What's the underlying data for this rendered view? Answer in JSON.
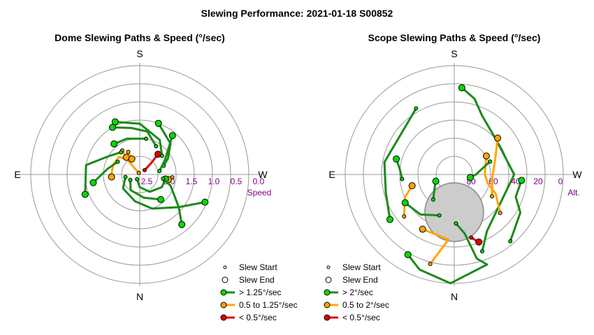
{
  "title": "Slewing Performance: 2021-01-18 S00852",
  "colors": {
    "fast": "#1a8a1a",
    "fast_marker": "#00dd00",
    "mid": "#ffa500",
    "slow": "#e00000",
    "grid": "#999999",
    "label": "#800080",
    "exclusion": "#cccccc"
  },
  "chart_data": [
    {
      "type": "polar-path",
      "title": "Dome Slewing Paths & Speed (°/sec)",
      "compass": {
        "top": "S",
        "bottom": "N",
        "left": "E",
        "right": "W"
      },
      "radial_ticks": [
        "2.5",
        "2.0",
        "1.5",
        "1.0",
        "0.5",
        "0.0"
      ],
      "radial_axis_label": "Speed",
      "legend": [
        "Slew Start",
        "Slew End",
        "> 1.25°/sec",
        "0.5 to 1.25°/sec",
        "< 0.5°/sec"
      ],
      "slews": [
        {
          "cls": "slow",
          "pts": [
            [
              48,
              0.18
            ],
            [
              45,
              0.45
            ],
            [
              42,
              0.75
            ]
          ]
        },
        {
          "cls": "mid",
          "pts": [
            [
              -32,
              0.05
            ],
            [
              -40,
              0.55
            ],
            [
              -50,
              0.75
            ],
            [
              -70,
              0.78
            ],
            [
              -90,
              0.78
            ],
            [
              -95,
              0.78
            ]
          ]
        },
        {
          "cls": "mid",
          "pts": [
            [
              -36,
              0.82
            ],
            [
              -38,
              0.6
            ]
          ]
        },
        {
          "cls": "mid",
          "pts": [
            [
              -27,
              0.7
            ],
            [
              -27,
              0.48
            ]
          ]
        },
        {
          "cls": "mid",
          "pts": [
            [
              95,
              0.9
            ],
            [
              100,
              0.8
            ]
          ]
        },
        {
          "cls": "fast",
          "pts": [
            [
              -150,
              0.15
            ],
            [
              -180,
              0.35
            ],
            [
              150,
              0.55
            ],
            [
              120,
              0.7
            ],
            [
              100,
              0.72
            ]
          ]
        },
        {
          "cls": "fast",
          "pts": [
            [
              -120,
              0.3
            ],
            [
              -150,
              0.5
            ],
            [
              170,
              0.65
            ],
            [
              140,
              0.9
            ]
          ]
        },
        {
          "cls": "fast",
          "pts": [
            [
              -100,
              0.4
            ],
            [
              -130,
              0.6
            ],
            [
              -170,
              0.75
            ],
            [
              160,
              1.0
            ],
            [
              130,
              1.4
            ],
            [
              113,
              1.95
            ]
          ]
        },
        {
          "cls": "fast",
          "pts": [
            [
              -60,
              0.7
            ],
            [
              -80,
              0.9
            ],
            [
              -100,
              1.3
            ]
          ]
        },
        {
          "cls": "fast",
          "pts": [
            [
              -40,
              0.8
            ],
            [
              -60,
              1.0
            ],
            [
              -80,
              1.5
            ],
            [
              -110,
              1.6
            ]
          ]
        },
        {
          "cls": "fast",
          "pts": [
            [
              10,
              1.0
            ],
            [
              -20,
              1.05
            ],
            [
              -40,
              1.1
            ]
          ]
        },
        {
          "cls": "fast",
          "pts": [
            [
              30,
              0.9
            ],
            [
              10,
              1.2
            ],
            [
              -10,
              1.3
            ],
            [
              -30,
              1.5
            ]
          ]
        },
        {
          "cls": "fast",
          "pts": [
            [
              50,
              0.8
            ],
            [
              30,
              1.1
            ],
            [
              0,
              1.4
            ],
            [
              -25,
              1.6
            ]
          ]
        },
        {
          "cls": "fast",
          "pts": [
            [
              70,
              0.7
            ],
            [
              60,
              0.9
            ],
            [
              45,
              1.2
            ],
            [
              20,
              1.5
            ]
          ]
        },
        {
          "cls": "fast",
          "pts": [
            [
              100,
              0.65
            ],
            [
              110,
              0.9
            ],
            [
              130,
              1.4
            ],
            [
              140,
              1.8
            ]
          ]
        },
        {
          "cls": "fast",
          "pts": [
            [
              80,
              0.55
            ],
            [
              60,
              0.8
            ],
            [
              40,
              1.4
            ]
          ]
        }
      ]
    },
    {
      "type": "polar-path",
      "title": "Scope Slewing Paths & Speed (°/sec)",
      "compass": {
        "top": "S",
        "bottom": "N",
        "left": "E",
        "right": "W"
      },
      "radial_ticks": [
        "80",
        "60",
        "40",
        "20",
        "0"
      ],
      "radial_axis_label": "Alt.",
      "legend": [
        "Slew Start",
        "Slew End",
        "> 2°/sec",
        "0.5 to 2°/sec",
        "< 0.5°/sec"
      ],
      "slews": [
        {
          "cls": "fast",
          "pts": [
            [
              178,
              45
            ],
            [
              170,
              55
            ],
            [
              165,
              80
            ],
            [
              160,
              88
            ],
            [
              -178,
              100
            ],
            [
              -160,
              93
            ],
            [
              -150,
              85
            ]
          ]
        },
        {
          "cls": "fast",
          "pts": [
            [
              160,
              75
            ],
            [
              150,
              60
            ],
            [
              90,
              55
            ],
            [
              50,
              50
            ],
            [
              25,
              60
            ],
            [
              15,
              72
            ],
            [
              5,
              80
            ]
          ]
        },
        {
          "cls": "mid",
          "pts": [
            [
              120,
              40
            ],
            [
              95,
              35
            ],
            [
              70,
              40
            ],
            [
              50,
              52
            ]
          ]
        },
        {
          "cls": "mid",
          "pts": [
            [
              -165,
              85
            ],
            [
              -175,
              60
            ],
            [
              -150,
              58
            ]
          ]
        },
        {
          "cls": "mid",
          "pts": [
            [
              -130,
              60
            ],
            [
              -115,
              50
            ],
            [
              -105,
              40
            ]
          ]
        },
        {
          "cls": "mid",
          "pts": [
            [
              130,
              55
            ],
            [
              115,
              42
            ],
            [
              105,
              32
            ],
            [
              90,
              28
            ],
            [
              60,
              34
            ]
          ]
        },
        {
          "cls": "fast",
          "pts": [
            [
              -30,
              70
            ],
            [
              -80,
              65
            ],
            [
              -105,
              65
            ],
            [
              -125,
              72
            ]
          ]
        },
        {
          "cls": "fast",
          "pts": [
            [
              70,
              35
            ],
            [
              80,
              25
            ],
            [
              90,
              20
            ],
            [
              100,
              15
            ]
          ]
        },
        {
          "cls": "fast",
          "pts": [
            [
              140,
              80
            ],
            [
              120,
              70
            ],
            [
              110,
              60
            ],
            [
              95,
              62
            ]
          ]
        },
        {
          "cls": "fast",
          "pts": [
            [
              -160,
              40
            ],
            [
              -140,
              48
            ],
            [
              -120,
              52
            ]
          ]
        },
        {
          "cls": "slow",
          "pts": [
            [
              165,
              60
            ],
            [
              160,
              66
            ]
          ]
        },
        {
          "cls": "fast",
          "pts": [
            [
              -95,
              48
            ],
            [
              -85,
              50
            ],
            [
              -75,
              55
            ]
          ]
        },
        {
          "cls": "fast",
          "pts": [
            [
              -140,
              30
            ],
            [
              -125,
              22
            ],
            [
              -110,
              18
            ]
          ]
        }
      ]
    }
  ]
}
